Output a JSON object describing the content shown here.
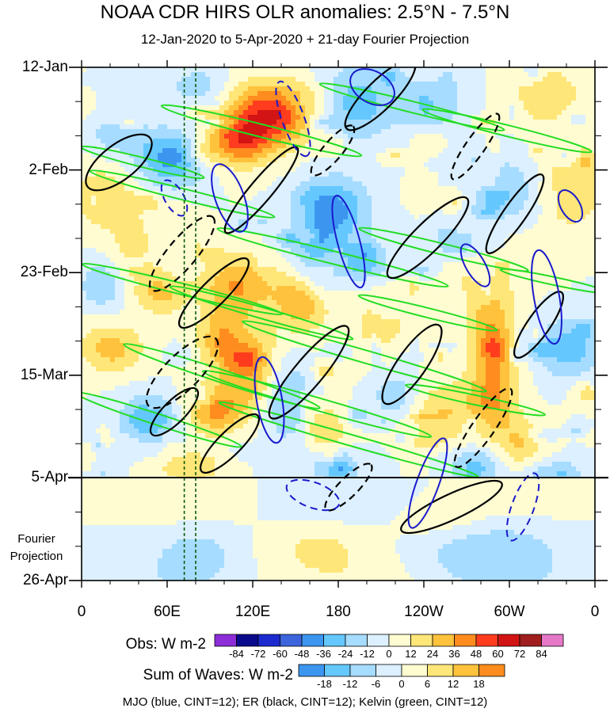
{
  "title": "NOAA CDR HIRS OLR anomalies: 2.5°N - 7.5°N",
  "subtitle": "12-Jan-2020 to 5-Apr-2020 + 21-day Fourier Projection",
  "projection_label_1": "Fourier",
  "projection_label_2": "Projection",
  "footer": "MJO (blue, CINT=12); ER (black, CINT=12); Kelvin (green, CINT=12)",
  "colorbar_obs": {
    "name": "Obs: W m-2",
    "ticks": [
      "-84",
      "-72",
      "-60",
      "-48",
      "-36",
      "-24",
      "-12",
      "0",
      "12",
      "24",
      "36",
      "48",
      "60",
      "72",
      "84"
    ],
    "colors": [
      "#8c2dd8",
      "#0a0a8c",
      "#1c2ad0",
      "#3c64dc",
      "#3c96f0",
      "#64c8ff",
      "#a6dcff",
      "#dcf0ff",
      "#fffcd2",
      "#ffe678",
      "#ffc23c",
      "#ff8c1e",
      "#ff3c1e",
      "#d21414",
      "#a01e1e",
      "#e678c8"
    ]
  },
  "colorbar_waves": {
    "name": "Sum of Waves: W m-2",
    "ticks": [
      "-18",
      "-12",
      "-6",
      "0",
      "6",
      "12",
      "18"
    ],
    "colors": [
      "#3c96f0",
      "#64c8ff",
      "#a6dcff",
      "#dcf0ff",
      "#fffcd2",
      "#ffe678",
      "#ffc23c",
      "#ff8c1e"
    ]
  },
  "chart_data": {
    "type": "heatmap",
    "title": "NOAA CDR HIRS OLR anomalies: 2.5°N - 7.5°N",
    "subtitle": "12-Jan-2020 to 5-Apr-2020 + 21-day Fourier Projection",
    "x_ticks": [
      "0",
      "60E",
      "120E",
      "180",
      "120W",
      "60W",
      "0"
    ],
    "x_values_deg_east": [
      0,
      60,
      120,
      180,
      240,
      300,
      360
    ],
    "y_ticks": [
      "12-Jan",
      "2-Feb",
      "23-Feb",
      "15-Mar",
      "5-Apr",
      "26-Apr"
    ],
    "y_dates": [
      "2020-01-12",
      "2020-02-02",
      "2020-02-23",
      "2020-03-15",
      "2020-04-05",
      "2020-04-26"
    ],
    "observation_end": "2020-04-05",
    "projection_days": 21,
    "reference_lines_lon": [
      72,
      80
    ],
    "contours": [
      {
        "name": "MJO",
        "color": "blue",
        "cint": 12
      },
      {
        "name": "ER",
        "color": "black",
        "cint": 12
      },
      {
        "name": "Kelvin",
        "color": "green",
        "cint": 12
      }
    ]
  }
}
